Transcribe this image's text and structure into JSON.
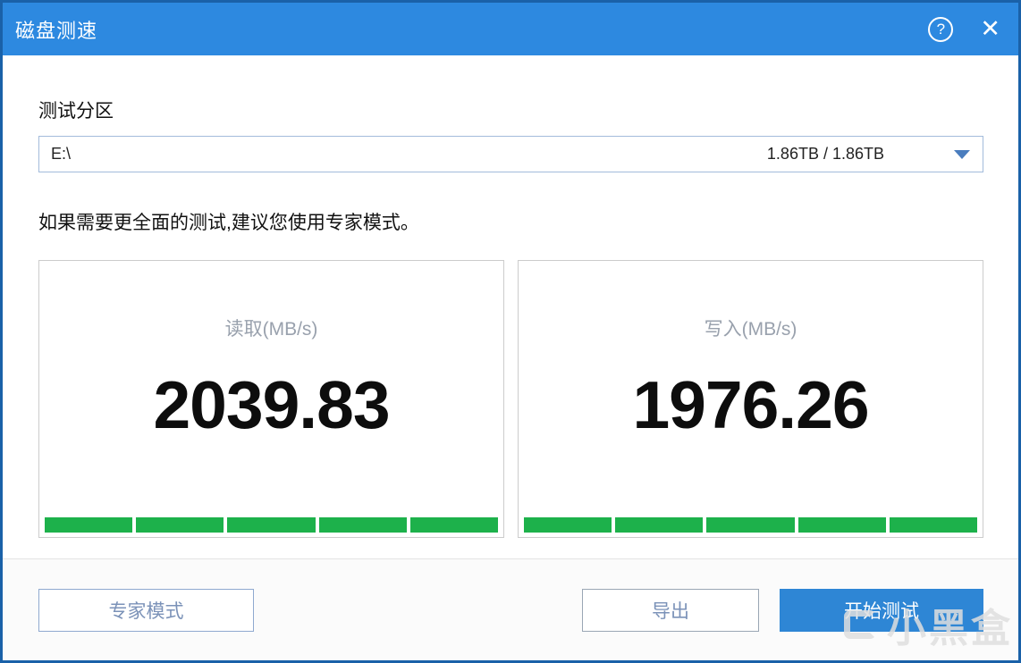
{
  "window": {
    "title": "磁盘测速",
    "help_icon": "?",
    "close_icon": "✕"
  },
  "partition": {
    "label": "测试分区",
    "value": "E:\\",
    "capacity": "1.86TB / 1.86TB"
  },
  "hint": "如果需要更全面的测试,建议您使用专家模式。",
  "panels": {
    "read": {
      "label": "读取(MB/s)",
      "value": "2039.83",
      "segments": 5
    },
    "write": {
      "label": "写入(MB/s)",
      "value": "1976.26",
      "segments": 5
    }
  },
  "footer": {
    "expert_button": "专家模式",
    "export_button": "导出",
    "start_button": "开始测试"
  },
  "watermark": {
    "text": "小黑盒"
  },
  "colors": {
    "titlebar": "#2d89e0",
    "window_border": "#1a61a8",
    "accent_button": "#2e86d5",
    "bar_green": "#1db14b",
    "panel_border": "#cccccc",
    "dropdown_border": "#a3bbdb"
  }
}
